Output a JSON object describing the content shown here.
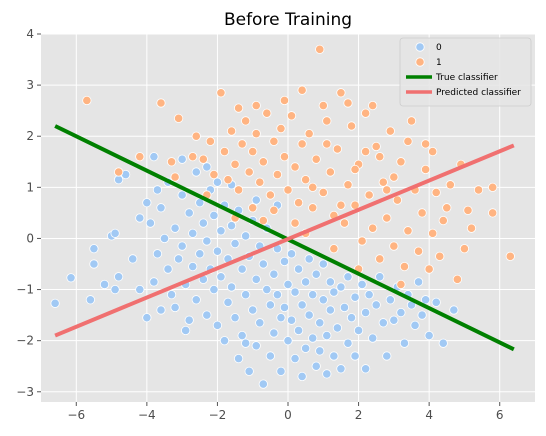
{
  "chart_data": {
    "type": "scatter",
    "title": "Before Training",
    "xlabel": "",
    "ylabel": "",
    "xlim": [
      -7.0,
      7.0
    ],
    "ylim": [
      -3.2,
      4.0
    ],
    "x_ticks": [
      -6,
      -4,
      -2,
      0,
      2,
      4,
      6
    ],
    "y_ticks": [
      -3,
      -2,
      -1,
      0,
      1,
      2,
      3,
      4
    ],
    "grid": true,
    "legend_position": "top-right",
    "series": [
      {
        "name": "0",
        "kind": "points",
        "color": "#a1c9f4",
        "points": [
          [
            -6.6,
            -1.27
          ],
          [
            -6.15,
            -0.77
          ],
          [
            -5.6,
            -1.2
          ],
          [
            -5.5,
            -0.5
          ],
          [
            -5.5,
            -0.2
          ],
          [
            -5.2,
            -0.9
          ],
          [
            -5.0,
            0.05
          ],
          [
            -4.9,
            0.1
          ],
          [
            -4.9,
            -1.0
          ],
          [
            -4.8,
            -0.75
          ],
          [
            -4.8,
            1.15
          ],
          [
            -4.6,
            1.25
          ],
          [
            -4.4,
            -0.4
          ],
          [
            -4.2,
            -1.0
          ],
          [
            -4.2,
            0.4
          ],
          [
            -4.0,
            -1.55
          ],
          [
            -4.0,
            0.7
          ],
          [
            -3.9,
            0.3
          ],
          [
            -3.8,
            -0.85
          ],
          [
            -3.7,
            -0.3
          ],
          [
            -3.7,
            0.95
          ],
          [
            -3.6,
            0.6
          ],
          [
            -3.5,
            0.0
          ],
          [
            -3.4,
            1.1
          ],
          [
            -3.4,
            -0.6
          ],
          [
            -3.3,
            -1.1
          ],
          [
            -3.2,
            0.2
          ],
          [
            -3.2,
            -1.35
          ],
          [
            -3.1,
            -0.4
          ],
          [
            -3.0,
            0.85
          ],
          [
            -3.0,
            -0.15
          ],
          [
            -2.9,
            -0.9
          ],
          [
            -2.8,
            0.5
          ],
          [
            -2.8,
            -1.6
          ],
          [
            -2.7,
            0.1
          ],
          [
            -2.7,
            -0.55
          ],
          [
            -2.6,
            1.3
          ],
          [
            -2.6,
            -1.2
          ],
          [
            -2.5,
            -0.3
          ],
          [
            -2.5,
            0.7
          ],
          [
            -2.4,
            -0.8
          ],
          [
            -2.4,
            0.3
          ],
          [
            -2.3,
            -1.5
          ],
          [
            -2.3,
            -0.05
          ],
          [
            -2.2,
            0.95
          ],
          [
            -2.2,
            -0.6
          ],
          [
            -2.1,
            -1.0
          ],
          [
            -2.1,
            0.45
          ],
          [
            -2.0,
            -0.25
          ],
          [
            -2.0,
            -1.7
          ],
          [
            -1.9,
            0.15
          ],
          [
            -1.9,
            -0.75
          ],
          [
            -1.8,
            -2.0
          ],
          [
            -1.8,
            0.65
          ],
          [
            -1.7,
            -1.25
          ],
          [
            -1.7,
            -0.4
          ],
          [
            -1.6,
            0.25
          ],
          [
            -1.6,
            -0.95
          ],
          [
            -1.5,
            -1.55
          ],
          [
            -1.5,
            -0.1
          ],
          [
            -1.4,
            0.55
          ],
          [
            -1.4,
            -2.35
          ],
          [
            -1.3,
            -0.6
          ],
          [
            -1.3,
            -1.9
          ],
          [
            -1.2,
            0.05
          ],
          [
            -1.2,
            -1.1
          ],
          [
            -1.1,
            -0.35
          ],
          [
            -1.1,
            -2.6
          ],
          [
            -1.0,
            0.35
          ],
          [
            -1.0,
            -1.4
          ],
          [
            -0.9,
            -0.8
          ],
          [
            -0.9,
            -2.1
          ],
          [
            -0.8,
            -0.15
          ],
          [
            -0.8,
            -1.65
          ],
          [
            -0.7,
            -0.5
          ],
          [
            -0.7,
            -2.85
          ],
          [
            -0.6,
            -1.0
          ],
          [
            -0.6,
            0.2
          ],
          [
            -0.5,
            -1.3
          ],
          [
            -0.5,
            -2.3
          ],
          [
            -0.4,
            -0.7
          ],
          [
            -0.4,
            -1.85
          ],
          [
            -0.3,
            -0.2
          ],
          [
            -0.3,
            -1.1
          ],
          [
            -0.2,
            -1.55
          ],
          [
            -0.2,
            -2.6
          ],
          [
            -0.1,
            -0.45
          ],
          [
            -0.1,
            -1.35
          ],
          [
            0.0,
            -0.9
          ],
          [
            0.0,
            -2.0
          ],
          [
            0.1,
            -1.6
          ],
          [
            0.1,
            -0.3
          ],
          [
            0.2,
            -2.35
          ],
          [
            0.2,
            -1.05
          ],
          [
            0.3,
            -0.6
          ],
          [
            0.3,
            -1.8
          ],
          [
            0.4,
            -1.3
          ],
          [
            0.4,
            -2.7
          ],
          [
            0.5,
            -0.85
          ],
          [
            0.5,
            -2.15
          ],
          [
            0.6,
            -1.5
          ],
          [
            0.6,
            -0.4
          ],
          [
            0.7,
            -1.95
          ],
          [
            0.7,
            -1.1
          ],
          [
            0.8,
            -2.5
          ],
          [
            0.8,
            -0.7
          ],
          [
            0.9,
            -1.65
          ],
          [
            0.9,
            -2.2
          ],
          [
            1.0,
            -1.2
          ],
          [
            1.0,
            -0.5
          ],
          [
            1.1,
            -1.9
          ],
          [
            1.1,
            -2.65
          ],
          [
            1.2,
            -1.4
          ],
          [
            1.2,
            -0.85
          ],
          [
            1.3,
            -2.3
          ],
          [
            1.3,
            -1.05
          ],
          [
            1.4,
            -1.75
          ],
          [
            1.5,
            -0.95
          ],
          [
            1.5,
            -2.55
          ],
          [
            1.6,
            -1.35
          ],
          [
            1.7,
            -2.05
          ],
          [
            1.7,
            -0.75
          ],
          [
            1.8,
            -1.55
          ],
          [
            1.9,
            -2.3
          ],
          [
            1.9,
            -1.15
          ],
          [
            2.0,
            -1.8
          ],
          [
            2.1,
            -0.9
          ],
          [
            2.2,
            -1.45
          ],
          [
            2.2,
            -2.55
          ],
          [
            2.3,
            -1.1
          ],
          [
            2.4,
            -1.95
          ],
          [
            2.5,
            -1.3
          ],
          [
            2.6,
            -0.75
          ],
          [
            2.7,
            -1.65
          ],
          [
            2.8,
            -2.3
          ],
          [
            2.9,
            -1.2
          ],
          [
            3.0,
            -1.6
          ],
          [
            3.1,
            -0.95
          ],
          [
            3.2,
            -1.45
          ],
          [
            3.3,
            -2.05
          ],
          [
            3.4,
            -1.1
          ],
          [
            3.5,
            -1.3
          ],
          [
            3.6,
            -1.7
          ],
          [
            3.7,
            -0.85
          ],
          [
            3.8,
            -1.5
          ],
          [
            3.9,
            -1.2
          ],
          [
            4.0,
            -1.9
          ],
          [
            4.2,
            -1.25
          ],
          [
            4.4,
            -2.05
          ],
          [
            4.7,
            -1.4
          ],
          [
            -2.9,
            -1.8
          ],
          [
            -3.6,
            -1.4
          ],
          [
            -1.2,
            -2.05
          ],
          [
            -0.3,
            0.65
          ],
          [
            -0.9,
            0.75
          ],
          [
            -1.6,
            1.05
          ],
          [
            -2.3,
            1.4
          ],
          [
            -3.0,
            1.55
          ],
          [
            -3.8,
            1.6
          ],
          [
            -2.0,
            1.1
          ]
        ]
      },
      {
        "name": "1",
        "kind": "points",
        "color": "#ffb482",
        "points": [
          [
            -5.7,
            2.7
          ],
          [
            -4.8,
            1.3
          ],
          [
            -4.2,
            1.6
          ],
          [
            -3.6,
            2.65
          ],
          [
            -3.1,
            2.35
          ],
          [
            -3.3,
            1.5
          ],
          [
            -2.7,
            1.6
          ],
          [
            -2.4,
            1.55
          ],
          [
            -2.2,
            1.9
          ],
          [
            -2.1,
            1.25
          ],
          [
            -1.9,
            2.85
          ],
          [
            -1.8,
            1.7
          ],
          [
            -1.7,
            1.15
          ],
          [
            -1.6,
            2.1
          ],
          [
            -1.5,
            1.45
          ],
          [
            -1.4,
            0.95
          ],
          [
            -1.3,
            1.85
          ],
          [
            -1.2,
            2.3
          ],
          [
            -1.1,
            1.3
          ],
          [
            -1.0,
            1.7
          ],
          [
            -0.9,
            2.05
          ],
          [
            -0.8,
            1.1
          ],
          [
            -0.7,
            1.5
          ],
          [
            -0.6,
            2.45
          ],
          [
            -0.5,
            0.85
          ],
          [
            -0.4,
            1.9
          ],
          [
            -0.3,
            1.25
          ],
          [
            -0.2,
            2.15
          ],
          [
            -0.1,
            1.6
          ],
          [
            0.0,
            0.95
          ],
          [
            0.1,
            2.4
          ],
          [
            0.2,
            1.4
          ],
          [
            0.3,
            0.7
          ],
          [
            0.4,
            1.85
          ],
          [
            0.5,
            1.15
          ],
          [
            0.6,
            2.05
          ],
          [
            0.7,
            0.6
          ],
          [
            0.8,
            1.55
          ],
          [
            0.9,
            3.7
          ],
          [
            1.0,
            0.9
          ],
          [
            1.1,
            2.3
          ],
          [
            1.2,
            1.3
          ],
          [
            1.3,
            0.45
          ],
          [
            1.4,
            1.75
          ],
          [
            1.5,
            2.85
          ],
          [
            1.6,
            0.3
          ],
          [
            1.7,
            1.05
          ],
          [
            1.8,
            2.2
          ],
          [
            1.9,
            0.65
          ],
          [
            2.0,
            1.45
          ],
          [
            2.1,
            -0.05
          ],
          [
            2.2,
            2.45
          ],
          [
            2.3,
            0.85
          ],
          [
            2.4,
            0.2
          ],
          [
            2.5,
            1.8
          ],
          [
            2.6,
            -0.4
          ],
          [
            2.7,
            1.1
          ],
          [
            2.8,
            0.4
          ],
          [
            2.9,
            2.1
          ],
          [
            3.0,
            -0.15
          ],
          [
            3.1,
            0.75
          ],
          [
            3.2,
            1.5
          ],
          [
            3.3,
            -0.55
          ],
          [
            3.4,
            0.15
          ],
          [
            3.5,
            2.3
          ],
          [
            3.6,
            0.95
          ],
          [
            3.7,
            -0.25
          ],
          [
            3.8,
            0.5
          ],
          [
            3.9,
            1.35
          ],
          [
            4.0,
            -0.6
          ],
          [
            4.1,
            0.1
          ],
          [
            4.2,
            0.9
          ],
          [
            4.3,
            -0.35
          ],
          [
            4.4,
            0.35
          ],
          [
            4.6,
            1.05
          ],
          [
            4.8,
            -0.8
          ],
          [
            4.9,
            1.45
          ],
          [
            5.0,
            -0.2
          ],
          [
            5.1,
            0.55
          ],
          [
            5.4,
            0.95
          ],
          [
            5.8,
            0.5
          ],
          [
            6.3,
            -0.35
          ],
          [
            5.8,
            1.0
          ],
          [
            4.1,
            1.7
          ],
          [
            2.4,
            2.6
          ],
          [
            1.0,
            2.6
          ],
          [
            -0.9,
            2.6
          ],
          [
            -2.3,
            0.85
          ],
          [
            -1.5,
            0.4
          ],
          [
            -0.7,
            0.35
          ],
          [
            0.2,
            0.3
          ],
          [
            1.3,
            -0.2
          ],
          [
            2.0,
            -0.6
          ],
          [
            3.2,
            -0.9
          ],
          [
            2.8,
            0.95
          ],
          [
            1.9,
            1.35
          ],
          [
            0.7,
            1.0
          ],
          [
            -0.4,
            0.55
          ],
          [
            -1.0,
            0.6
          ],
          [
            0.5,
            0.1
          ],
          [
            1.5,
            0.65
          ],
          [
            2.6,
            1.6
          ],
          [
            3.4,
            1.9
          ],
          [
            3.9,
            1.85
          ],
          [
            4.5,
            0.6
          ],
          [
            5.2,
            0.2
          ],
          [
            3.0,
            1.2
          ],
          [
            2.2,
            1.7
          ],
          [
            1.1,
            1.85
          ],
          [
            -0.1,
            2.7
          ],
          [
            -1.4,
            2.55
          ],
          [
            -2.6,
            2.0
          ],
          [
            -3.2,
            1.2
          ],
          [
            0.4,
            2.9
          ],
          [
            1.7,
            2.65
          ]
        ]
      },
      {
        "name": "True classifier",
        "kind": "line",
        "color": "#008000",
        "points": [
          [
            -6.6,
            2.2
          ],
          [
            6.4,
            -2.17
          ]
        ]
      },
      {
        "name": "Predicted classifier",
        "kind": "line",
        "color": "#f07070",
        "points": [
          [
            -6.6,
            -1.9
          ],
          [
            6.4,
            1.82
          ]
        ]
      }
    ]
  }
}
